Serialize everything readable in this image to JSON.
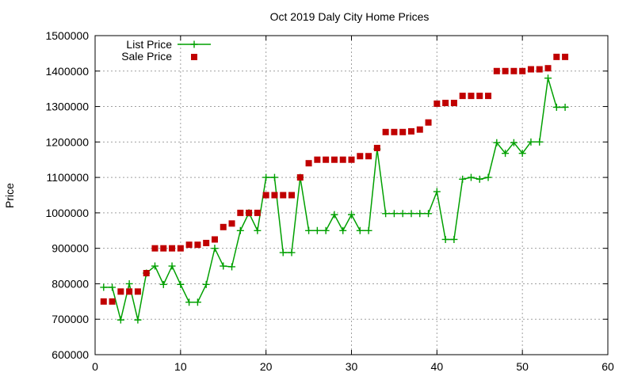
{
  "chart_data": {
    "type": "line",
    "title": "Oct 2019 Daly City Home Prices",
    "xlabel": "",
    "ylabel": "Price",
    "xlim": [
      0,
      60
    ],
    "ylim": [
      600000,
      1500000
    ],
    "x_ticks": [
      "0",
      "10",
      "20",
      "30",
      "40",
      "50",
      "60"
    ],
    "y_ticks": [
      "600000",
      "700000",
      "800000",
      "900000",
      "1000000",
      "1100000",
      "1200000",
      "1300000",
      "1400000",
      "1500000"
    ],
    "grid": true,
    "legend_position": "top-left",
    "series": [
      {
        "name": "List Price",
        "style": "line-plus",
        "color": "#00a000",
        "x": [
          1,
          2,
          3,
          4,
          5,
          6,
          7,
          8,
          9,
          10,
          11,
          12,
          13,
          14,
          15,
          16,
          17,
          18,
          19,
          20,
          21,
          22,
          23,
          24,
          25,
          26,
          27,
          28,
          29,
          30,
          31,
          32,
          33,
          34,
          35,
          36,
          37,
          38,
          39,
          40,
          41,
          42,
          43,
          44,
          45,
          46,
          47,
          48,
          49,
          50,
          51,
          52,
          53,
          54,
          55
        ],
        "values": [
          790000,
          790000,
          698000,
          800000,
          698000,
          830000,
          850000,
          798000,
          850000,
          798000,
          748000,
          748000,
          798000,
          900000,
          850000,
          848000,
          950000,
          1000000,
          950000,
          1100000,
          1100000,
          888000,
          888000,
          1100000,
          950000,
          950000,
          950000,
          995000,
          950000,
          995000,
          950000,
          950000,
          1180000,
          998000,
          998000,
          998000,
          998000,
          998000,
          998000,
          1060000,
          925000,
          925000,
          1095000,
          1100000,
          1095000,
          1100000,
          1198000,
          1168000,
          1198000,
          1168000,
          1200000,
          1200000,
          1380000,
          1298000,
          1298000
        ]
      },
      {
        "name": "Sale Price",
        "style": "points-square",
        "color": "#c00000",
        "x": [
          1,
          2,
          3,
          4,
          5,
          6,
          7,
          8,
          9,
          10,
          11,
          12,
          13,
          14,
          15,
          16,
          17,
          18,
          19,
          20,
          21,
          22,
          23,
          24,
          25,
          26,
          27,
          28,
          29,
          30,
          31,
          32,
          33,
          34,
          35,
          36,
          37,
          38,
          39,
          40,
          41,
          42,
          43,
          44,
          45,
          46,
          47,
          48,
          49,
          50,
          51,
          52,
          53,
          54,
          55
        ],
        "values": [
          750000,
          750000,
          778000,
          778000,
          778000,
          830000,
          900000,
          900000,
          900000,
          900000,
          910000,
          910000,
          915000,
          925000,
          960000,
          970000,
          1000000,
          1000000,
          1000000,
          1050000,
          1050000,
          1050000,
          1050000,
          1100000,
          1140000,
          1150000,
          1150000,
          1150000,
          1150000,
          1150000,
          1160000,
          1160000,
          1183000,
          1228000,
          1228000,
          1228000,
          1230000,
          1235000,
          1255000,
          1308000,
          1310000,
          1310000,
          1330000,
          1330000,
          1330000,
          1330000,
          1400000,
          1400000,
          1400000,
          1400000,
          1405000,
          1405000,
          1408000,
          1440000,
          1440000
        ]
      }
    ]
  }
}
